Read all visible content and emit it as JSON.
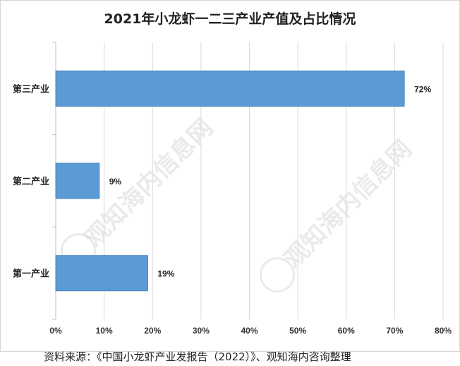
{
  "chart_data": {
    "type": "bar",
    "orientation": "horizontal",
    "title": "2021年小龙虾一二三产业产值及占比情况",
    "categories": [
      "第三产业",
      "第二产业",
      "第一产业"
    ],
    "values": [
      72,
      9,
      19
    ],
    "data_labels": [
      "72%",
      "9%",
      "19%"
    ],
    "xlim": [
      0,
      80
    ],
    "x_ticks": [
      "0%",
      "10%",
      "20%",
      "30%",
      "40%",
      "50%",
      "60%",
      "70%",
      "80%"
    ],
    "grid": "vertical",
    "bar_color": "#5b9bd5",
    "grid_color": "#d9d9d9"
  },
  "source": "资料来源：《中国小龙虾产业发报告（2022）》、观知海内咨询整理",
  "watermark": {
    "text": "观知海内信息网"
  }
}
